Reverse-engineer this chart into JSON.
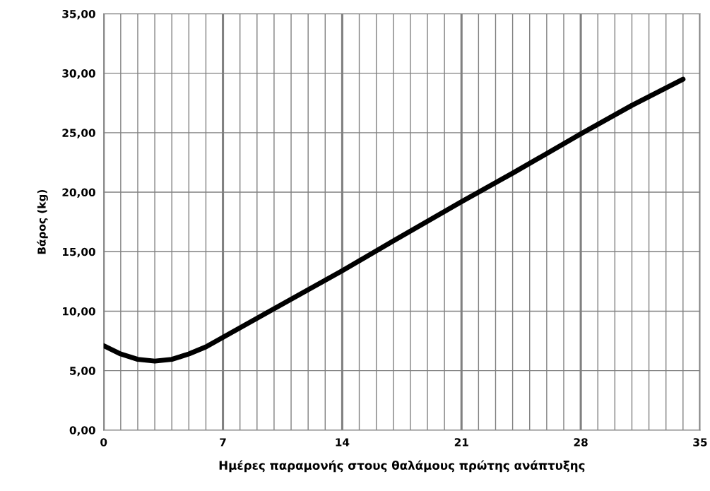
{
  "chart_data": {
    "type": "line",
    "xlabel": "Ημέρες παραμονής στους θαλάμους πρώτης ανάπτυξης",
    "ylabel": "Βάρος (kg)",
    "x": [
      0,
      1,
      2,
      3,
      4,
      5,
      6,
      7,
      10,
      14,
      17,
      21,
      24,
      28,
      31,
      34
    ],
    "series": [
      {
        "color": "#000000",
        "values": [
          7.1,
          6.4,
          5.95,
          5.8,
          5.95,
          6.4,
          7.0,
          7.8,
          10.2,
          13.4,
          15.9,
          19.2,
          21.6,
          24.9,
          27.3,
          29.5
        ]
      }
    ],
    "xlim": [
      0,
      35
    ],
    "xticks": [
      0,
      {
        "value": 1,
        "label": null
      },
      {
        "value": 2,
        "label": null
      },
      {
        "value": 3,
        "label": null
      },
      {
        "value": 4,
        "label": null
      },
      {
        "value": 5,
        "label": null
      },
      {
        "value": 6,
        "label": null
      },
      7,
      {
        "value": 8,
        "label": null
      },
      {
        "value": 9,
        "label": null
      },
      {
        "value": 10,
        "label": null
      },
      {
        "value": 11,
        "label": null
      },
      {
        "value": 12,
        "label": null
      },
      {
        "value": 13,
        "label": null
      },
      14,
      {
        "value": 15,
        "label": null
      },
      {
        "value": 16,
        "label": null
      },
      {
        "value": 17,
        "label": null
      },
      {
        "value": 18,
        "label": null
      },
      {
        "value": 19,
        "label": null
      },
      {
        "value": 20,
        "label": null
      },
      21,
      {
        "value": 22,
        "label": null
      },
      {
        "value": 23,
        "label": null
      },
      {
        "value": 24,
        "label": null
      },
      {
        "value": 25,
        "label": null
      },
      {
        "value": 26,
        "label": null
      },
      {
        "value": 27,
        "label": null
      },
      28,
      {
        "value": 29,
        "label": null
      },
      {
        "value": 30,
        "label": null
      },
      {
        "value": 31,
        "label": null
      },
      {
        "value": 32,
        "label": null
      },
      {
        "value": 33,
        "label": null
      },
      {
        "value": 34,
        "label": null
      },
      35
    ],
    "ylim": [
      0,
      35
    ],
    "yticks": [
      {
        "value": 0,
        "label": "0,00"
      },
      {
        "value": 5,
        "label": "5,00"
      },
      {
        "value": 10,
        "label": "10,00"
      },
      {
        "value": 15,
        "label": "15,00"
      },
      {
        "value": 20,
        "label": "20,00"
      },
      {
        "value": 25,
        "label": "25,00"
      },
      {
        "value": 30,
        "label": "30,00"
      },
      {
        "value": 35,
        "label": "35,00"
      }
    ],
    "grid": true,
    "marker": "none",
    "line_style": "solid"
  }
}
